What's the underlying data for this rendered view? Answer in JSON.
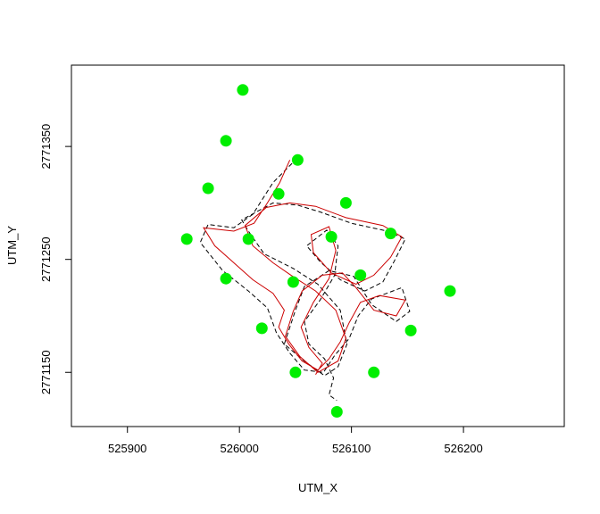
{
  "chart_data": {
    "type": "scatter",
    "title": "",
    "xlabel": "UTM_X",
    "ylabel": "UTM_Y",
    "xlim": [
      525850,
      526290
    ],
    "ylim": [
      2771102,
      2771422
    ],
    "x_ticks": [
      525900,
      526000,
      526100,
      526200
    ],
    "y_ticks": [
      2771150,
      2771250,
      2771350
    ],
    "grid": false,
    "legend": "none",
    "series": [
      {
        "kind": "points",
        "color": "#00ee00",
        "points": [
          [
            526003,
            2771400
          ],
          [
            525988,
            2771355
          ],
          [
            526052,
            2771338
          ],
          [
            525972,
            2771313
          ],
          [
            526035,
            2771308
          ],
          [
            526095,
            2771300
          ],
          [
            526135,
            2771273
          ],
          [
            525953,
            2771268
          ],
          [
            526008,
            2771268
          ],
          [
            526082,
            2771270
          ],
          [
            526108,
            2771236
          ],
          [
            525988,
            2771233
          ],
          [
            526048,
            2771230
          ],
          [
            526188,
            2771222
          ],
          [
            526020,
            2771189
          ],
          [
            526153,
            2771187
          ],
          [
            526050,
            2771150
          ],
          [
            526120,
            2771150
          ],
          [
            526087,
            2771115
          ]
        ]
      },
      {
        "kind": "path",
        "style": "dashed",
        "color": "#000000",
        "points": [
          [
            526047,
            2771335
          ],
          [
            526030,
            2771318
          ],
          [
            526012,
            2771290
          ],
          [
            525995,
            2771278
          ],
          [
            525972,
            2771281
          ],
          [
            525965,
            2771265
          ],
          [
            525985,
            2771240
          ],
          [
            526008,
            2771222
          ],
          [
            526025,
            2771207
          ],
          [
            526033,
            2771185
          ],
          [
            526045,
            2771167
          ],
          [
            526058,
            2771152
          ],
          [
            526075,
            2771150
          ],
          [
            526085,
            2771165
          ],
          [
            526098,
            2771180
          ],
          [
            526106,
            2771200
          ],
          [
            526118,
            2771215
          ],
          [
            526145,
            2771225
          ],
          [
            526152,
            2771204
          ],
          [
            526140,
            2771195
          ],
          [
            526118,
            2771210
          ],
          [
            526102,
            2771235
          ],
          [
            526080,
            2771240
          ],
          [
            526058,
            2771226
          ],
          [
            526050,
            2771205
          ],
          [
            526040,
            2771175
          ],
          [
            526058,
            2771160
          ],
          [
            526076,
            2771147
          ],
          [
            526088,
            2771155
          ],
          [
            526096,
            2771175
          ],
          [
            526090,
            2771205
          ],
          [
            526070,
            2771228
          ],
          [
            526048,
            2771242
          ],
          [
            526022,
            2771255
          ],
          [
            526008,
            2771275
          ],
          [
            526002,
            2771285
          ],
          [
            526030,
            2771300
          ],
          [
            526052,
            2771298
          ],
          [
            526072,
            2771292
          ],
          [
            526100,
            2771282
          ],
          [
            526132,
            2771275
          ],
          [
            526148,
            2771268
          ],
          [
            526138,
            2771248
          ],
          [
            526128,
            2771230
          ],
          [
            526112,
            2771222
          ],
          [
            526090,
            2771232
          ],
          [
            526072,
            2771248
          ],
          [
            526060,
            2771262
          ],
          [
            526078,
            2771276
          ],
          [
            526088,
            2771262
          ],
          [
            526085,
            2771236
          ],
          [
            526072,
            2771214
          ],
          [
            526058,
            2771195
          ],
          [
            526062,
            2771175
          ],
          [
            526076,
            2771162
          ],
          [
            526084,
            2771145
          ],
          [
            526080,
            2771130
          ],
          [
            526087,
            2771125
          ]
        ]
      },
      {
        "kind": "path",
        "style": "solid",
        "color": "#cc0000",
        "points": [
          [
            526045,
            2771338
          ],
          [
            526036,
            2771318
          ],
          [
            526025,
            2771300
          ],
          [
            526013,
            2771282
          ],
          [
            525995,
            2771275
          ],
          [
            525968,
            2771278
          ],
          [
            525978,
            2771262
          ],
          [
            525995,
            2771247
          ],
          [
            526012,
            2771232
          ],
          [
            526030,
            2771220
          ],
          [
            526040,
            2771205
          ],
          [
            526035,
            2771190
          ],
          [
            526044,
            2771175
          ],
          [
            526056,
            2771160
          ],
          [
            526070,
            2771152
          ],
          [
            526080,
            2771162
          ],
          [
            526090,
            2771177
          ],
          [
            526098,
            2771194
          ],
          [
            526108,
            2771212
          ],
          [
            526125,
            2771218
          ],
          [
            526148,
            2771214
          ],
          [
            526140,
            2771200
          ],
          [
            526120,
            2771205
          ],
          [
            526104,
            2771225
          ],
          [
            526092,
            2771238
          ],
          [
            526074,
            2771236
          ],
          [
            526056,
            2771222
          ],
          [
            526048,
            2771204
          ],
          [
            526041,
            2771182
          ],
          [
            526054,
            2771164
          ],
          [
            526070,
            2771150
          ],
          [
            526088,
            2771160
          ],
          [
            526095,
            2771180
          ],
          [
            526086,
            2771205
          ],
          [
            526068,
            2771222
          ],
          [
            526046,
            2771236
          ],
          [
            526030,
            2771247
          ],
          [
            526012,
            2771262
          ],
          [
            526005,
            2771280
          ],
          [
            526024,
            2771296
          ],
          [
            526045,
            2771300
          ],
          [
            526068,
            2771297
          ],
          [
            526095,
            2771287
          ],
          [
            526128,
            2771280
          ],
          [
            526145,
            2771270
          ],
          [
            526135,
            2771252
          ],
          [
            526120,
            2771236
          ],
          [
            526104,
            2771228
          ],
          [
            526082,
            2771238
          ],
          [
            526066,
            2771256
          ],
          [
            526064,
            2771272
          ],
          [
            526080,
            2771279
          ],
          [
            526086,
            2771258
          ],
          [
            526080,
            2771233
          ],
          [
            526066,
            2771212
          ],
          [
            526055,
            2771190
          ],
          [
            526062,
            2771172
          ],
          [
            526074,
            2771158
          ],
          [
            526068,
            2771148
          ]
        ]
      }
    ]
  }
}
